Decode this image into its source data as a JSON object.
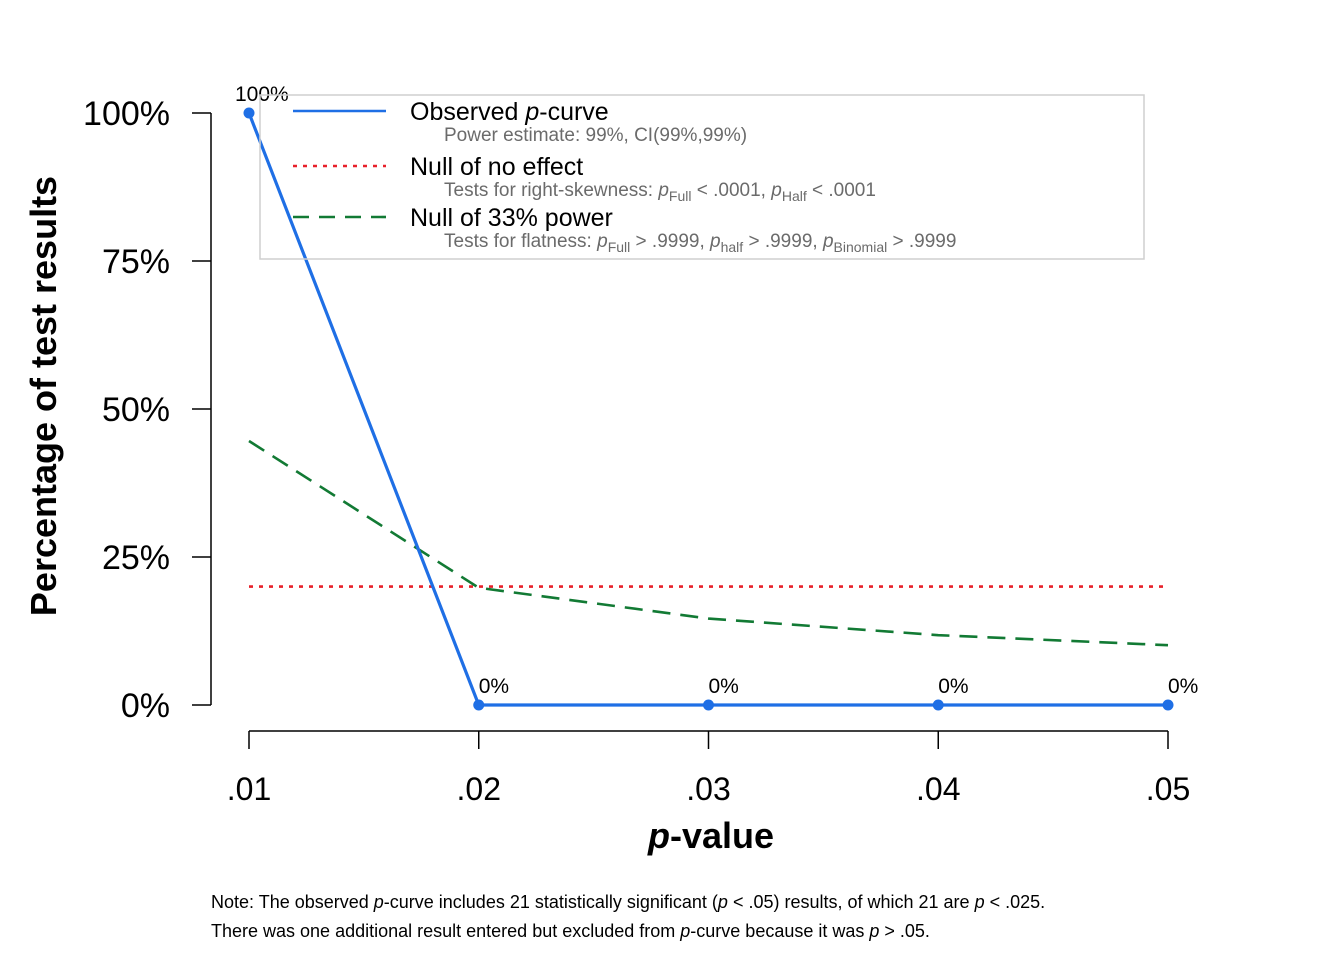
{
  "chart_data": {
    "type": "line",
    "xlabel_italic": "p",
    "xlabel_rest": "-value",
    "ylabel": "Percentage of test results",
    "x": [
      0.01,
      0.02,
      0.03,
      0.04,
      0.05
    ],
    "x_tick_labels": [
      ".01",
      ".02",
      ".03",
      ".04",
      ".05"
    ],
    "y_ticks": [
      0,
      25,
      50,
      75,
      100
    ],
    "y_tick_labels": [
      "0%",
      "25%",
      "50%",
      "75%",
      "100%"
    ],
    "ylim": [
      0,
      100
    ],
    "xlim": [
      0.01,
      0.05
    ],
    "grid": false,
    "legend_position": "top",
    "series": [
      {
        "name": "Observed p-curve",
        "style": "solid",
        "color": "#1f6fe5",
        "values": [
          100,
          0,
          0,
          0,
          0
        ],
        "point_labels": [
          "100%",
          "0%",
          "0%",
          "0%",
          "0%"
        ]
      },
      {
        "name": "Null of no effect",
        "style": "dotted",
        "color": "#e8202a",
        "values": [
          20,
          20,
          20,
          20,
          20
        ]
      },
      {
        "name": "Null of 33% power",
        "style": "dashed",
        "color": "#127a34",
        "values": [
          44.6,
          19.8,
          14.6,
          11.8,
          10.1
        ]
      }
    ],
    "legend": [
      {
        "main_pre": "Observed ",
        "main_italic": "p",
        "main_post": "-curve",
        "sub": "Power estimate: 99%, CI(99%,99%)"
      },
      {
        "main_pre": "Null of no effect",
        "sub_pre": "Tests for right-skewness: ",
        "sub_parts": [
          {
            "p": "p",
            "sub": "Full",
            "rest": " < .0001,  "
          },
          {
            "p": "p",
            "sub": "Half",
            "rest": " < .0001"
          }
        ]
      },
      {
        "main_pre": "Null of 33% power",
        "sub_pre": "Tests for flatness: ",
        "sub_parts": [
          {
            "p": "p",
            "sub": "Full",
            "rest": " > .9999,  "
          },
          {
            "p": "p",
            "sub": "half",
            "rest": " > .9999,  "
          },
          {
            "p": "p",
            "sub": "Binomial",
            "rest": " > .9999"
          }
        ]
      }
    ]
  },
  "note": {
    "line1": [
      {
        "t": "Note: The observed "
      },
      {
        "i": "p"
      },
      {
        "t": "-curve includes 21 statistically significant ("
      },
      {
        "i": "p"
      },
      {
        "t": " < .05) results, of which 21 are "
      },
      {
        "i": "p"
      },
      {
        "t": " < .025."
      }
    ],
    "line2": [
      {
        "t": "There was one additional result entered but excluded from "
      },
      {
        "i": "p"
      },
      {
        "t": "-curve because it was "
      },
      {
        "i": "p"
      },
      {
        "t": " > .05."
      }
    ]
  }
}
